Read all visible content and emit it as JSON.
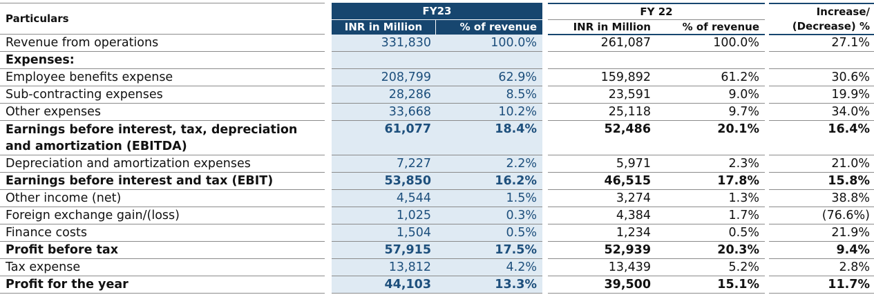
{
  "header": {
    "particulars": "Particulars",
    "fy23": "FY23",
    "fy22": "FY 22",
    "inr": "INR in Million",
    "pct": "% of revenue",
    "change_l1": "Increase/",
    "change_l2": "(Decrease) %"
  },
  "colors": {
    "header_bg": "#17466f",
    "fy23_bg": "#dfeaf3",
    "fy23_text": "#1d4f7c"
  },
  "rows": [
    {
      "label": "Revenue from operations",
      "fy23_inr": "331,830",
      "fy23_pct": "100.0%",
      "fy22_inr": "261,087",
      "fy22_pct": "100.0%",
      "change": "27.1%",
      "bold": false
    },
    {
      "label": "Expenses:",
      "fy23_inr": "",
      "fy23_pct": "",
      "fy22_inr": "",
      "fy22_pct": "",
      "change": "",
      "bold": true
    },
    {
      "label": "Employee benefits expense",
      "fy23_inr": "208,799",
      "fy23_pct": "62.9%",
      "fy22_inr": "159,892",
      "fy22_pct": "61.2%",
      "change": "30.6%",
      "bold": false
    },
    {
      "label": "Sub-contracting expenses",
      "fy23_inr": "28,286",
      "fy23_pct": "8.5%",
      "fy22_inr": "23,591",
      "fy22_pct": "9.0%",
      "change": "19.9%",
      "bold": false
    },
    {
      "label": "Other expenses",
      "fy23_inr": "33,668",
      "fy23_pct": "10.2%",
      "fy22_inr": "25,118",
      "fy22_pct": "9.7%",
      "change": "34.0%",
      "bold": false
    },
    {
      "label": "Earnings before interest, tax, depreciation and amortization (EBITDA)",
      "fy23_inr": "61,077",
      "fy23_pct": "18.4%",
      "fy22_inr": "52,486",
      "fy22_pct": "20.1%",
      "change": "16.4%",
      "bold": true,
      "tall": true
    },
    {
      "label": "Depreciation and amortization expenses",
      "fy23_inr": "7,227",
      "fy23_pct": "2.2%",
      "fy22_inr": "5,971",
      "fy22_pct": "2.3%",
      "change": "21.0%",
      "bold": false
    },
    {
      "label": "Earnings before interest and tax (EBIT)",
      "fy23_inr": "53,850",
      "fy23_pct": "16.2%",
      "fy22_inr": "46,515",
      "fy22_pct": "17.8%",
      "change": "15.8%",
      "bold": true
    },
    {
      "label": "Other income (net)",
      "fy23_inr": "4,544",
      "fy23_pct": "1.5%",
      "fy22_inr": "3,274",
      "fy22_pct": "1.3%",
      "change": "38.8%",
      "bold": false
    },
    {
      "label": "Foreign exchange gain/(loss)",
      "fy23_inr": "1,025",
      "fy23_pct": "0.3%",
      "fy22_inr": "4,384",
      "fy22_pct": "1.7%",
      "change": "(76.6%)",
      "bold": false
    },
    {
      "label": "Finance costs",
      "fy23_inr": "1,504",
      "fy23_pct": "0.5%",
      "fy22_inr": "1,234",
      "fy22_pct": "0.5%",
      "change": "21.9%",
      "bold": false
    },
    {
      "label": "Profit before tax",
      "fy23_inr": "57,915",
      "fy23_pct": "17.5%",
      "fy22_inr": "52,939",
      "fy22_pct": "20.3%",
      "change": "9.4%",
      "bold": true
    },
    {
      "label": "Tax expense",
      "fy23_inr": "13,812",
      "fy23_pct": "4.2%",
      "fy22_inr": "13,439",
      "fy22_pct": "5.2%",
      "change": "2.8%",
      "bold": false
    },
    {
      "label": "Profit for the year",
      "fy23_inr": "44,103",
      "fy23_pct": "13.3%",
      "fy22_inr": "39,500",
      "fy22_pct": "15.1%",
      "change": "11.7%",
      "bold": true
    }
  ]
}
